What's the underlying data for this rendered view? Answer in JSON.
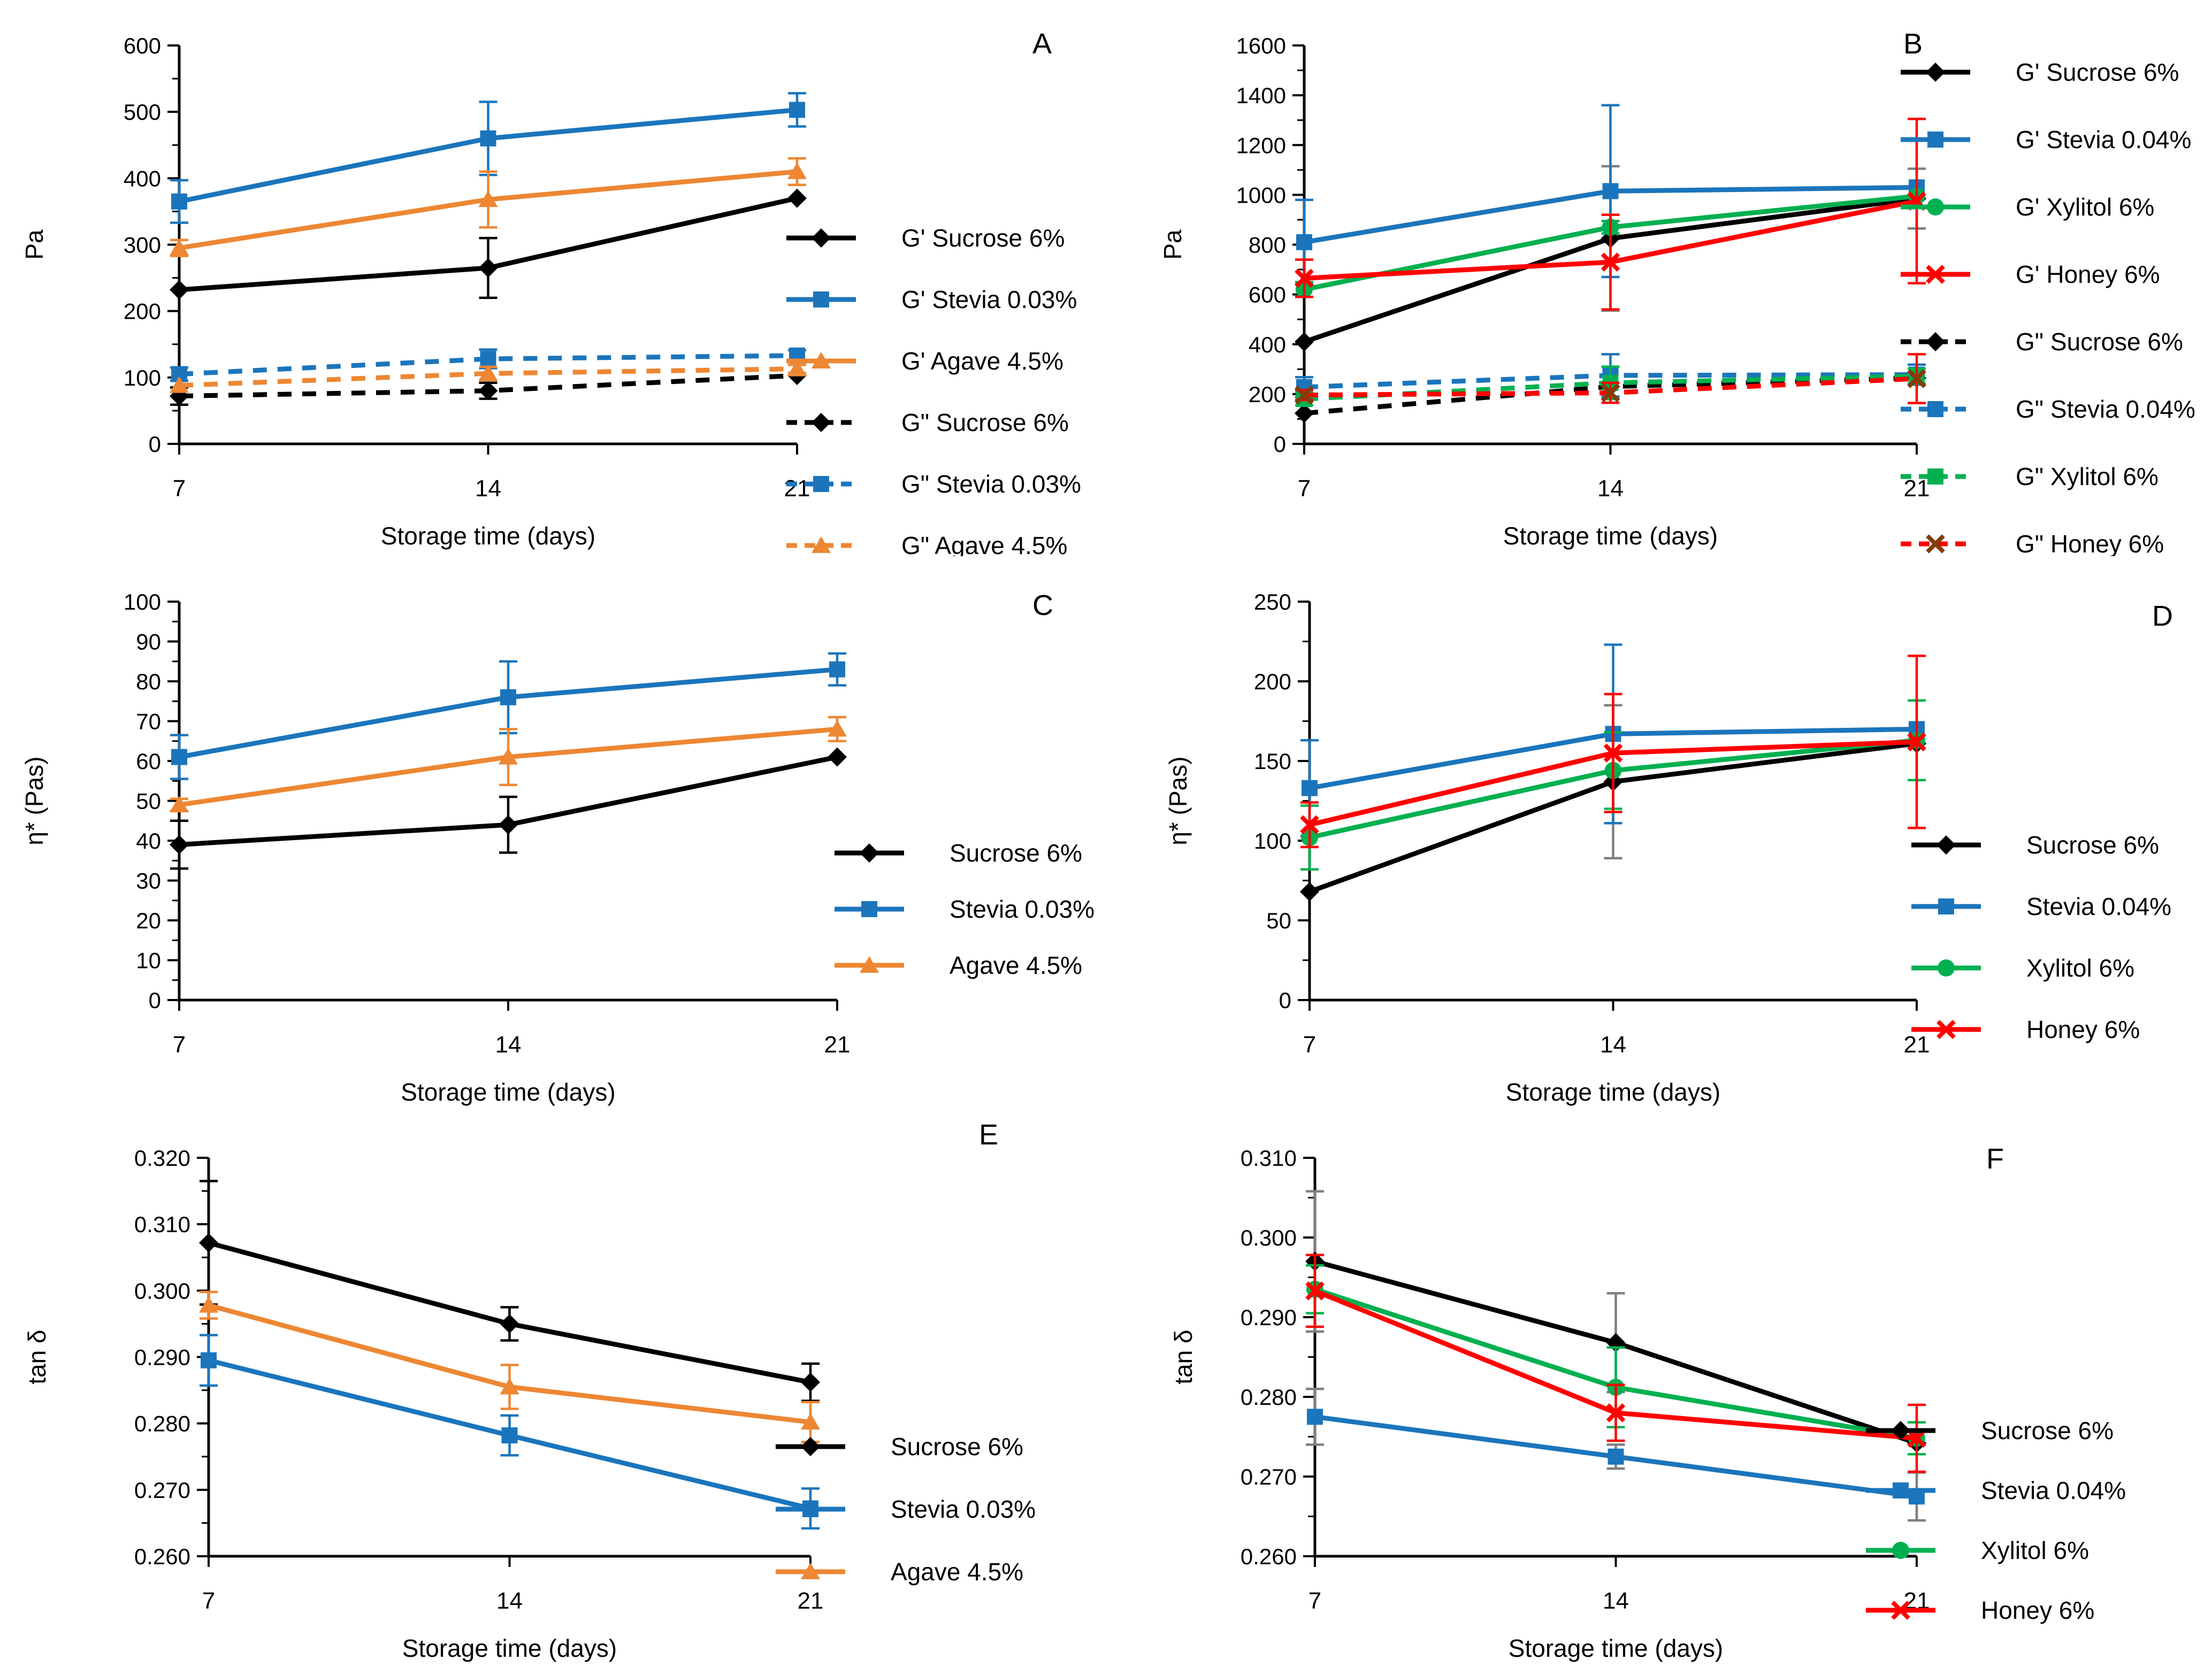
{
  "page": {
    "background": "#FFFFFF"
  },
  "chart_data": [
    {
      "panel": "A",
      "type": "line",
      "title": "",
      "xlabel": "Storage time (days)",
      "ylabel": "Pa",
      "x_categories": [
        "7",
        "14",
        "21"
      ],
      "ylim": [
        0,
        600
      ],
      "y_major": 100,
      "y_minor": 50,
      "y_decimals": 0,
      "grid": false,
      "legend_position": "right",
      "series": [
        {
          "name": "G' Sucrose 6%",
          "color": "#000000",
          "marker": "diamond",
          "dashed": false,
          "values": [
            232,
            265,
            370
          ],
          "err": [
            0,
            45,
            0
          ]
        },
        {
          "name": "G' Stevia 0.03%",
          "color": "#1B75BC",
          "marker": "square",
          "dashed": false,
          "values": [
            365,
            460,
            503
          ],
          "err": [
            32,
            55,
            25
          ]
        },
        {
          "name": "G' Agave 4.5%",
          "color": "#ED8733",
          "marker": "triangle",
          "dashed": false,
          "values": [
            295,
            368,
            410
          ],
          "err": [
            12,
            42,
            20
          ]
        },
        {
          "name": "G\" Sucrose 6%",
          "color": "#000000",
          "marker": "diamond",
          "dashed": true,
          "values": [
            72,
            80,
            103
          ],
          "err": [
            13,
            12,
            0
          ]
        },
        {
          "name": "G\" Stevia 0.03%",
          "color": "#1B75BC",
          "marker": "square",
          "dashed": true,
          "values": [
            105,
            128,
            133
          ],
          "err": [
            10,
            14,
            8
          ]
        },
        {
          "name": "G\" Agave 4.5%",
          "color": "#ED8733",
          "marker": "triangle",
          "dashed": true,
          "values": [
            88,
            106,
            113
          ],
          "err": [
            0,
            10,
            6
          ]
        }
      ],
      "layout": {
        "plot_left": 335,
        "plot_right": 1490,
        "ylabel_x": 80,
        "legend_text_x": 1685,
        "legend_y": 445,
        "legend_dy": 115,
        "letter_x": 1930,
        "letter_y": 100
      }
    },
    {
      "panel": "B",
      "type": "line",
      "title": "",
      "xlabel": "Storage time (days)",
      "ylabel": "Pa",
      "x_categories": [
        "7",
        "14",
        "21"
      ],
      "ylim": [
        0,
        1600
      ],
      "y_major": 200,
      "y_minor": 100,
      "y_decimals": 0,
      "grid": false,
      "legend_position": "right",
      "series": [
        {
          "name": "G' Sucrose 6%",
          "color": "#000000",
          "marker": "diamond",
          "dashed": false,
          "values": [
            410,
            825,
            985
          ],
          "err": [
            0,
            290,
            120
          ],
          "err_color": "#7F7F7F"
        },
        {
          "name": "G' Stevia 0.04%",
          "color": "#1B75BC",
          "marker": "square",
          "dashed": false,
          "values": [
            810,
            1015,
            1030
          ],
          "err": [
            170,
            345,
            0
          ]
        },
        {
          "name": "G' Xylitol 6%",
          "color": "#00B050",
          "marker": "circle",
          "dashed": false,
          "values": [
            620,
            870,
            995
          ],
          "err": [
            30,
            25,
            0
          ]
        },
        {
          "name": "G' Honey 6%",
          "color": "#FF0000",
          "marker": "x",
          "dashed": false,
          "values": [
            665,
            730,
            975
          ],
          "err": [
            75,
            190,
            330
          ]
        },
        {
          "name": "G\" Sucrose 6%",
          "color": "#000000",
          "marker": "diamond",
          "dashed": true,
          "values": [
            123,
            230,
            265
          ],
          "err": [
            0,
            0,
            0
          ]
        },
        {
          "name": "G\" Stevia 0.04%",
          "color": "#1B75BC",
          "marker": "square",
          "dashed": true,
          "values": [
            228,
            275,
            278
          ],
          "err": [
            40,
            85,
            40
          ]
        },
        {
          "name": "G\" Xylitol 6%",
          "color": "#00B050",
          "marker": "square",
          "dashed": true,
          "values": [
            180,
            245,
            272
          ],
          "err": [
            25,
            65,
            30
          ]
        },
        {
          "name": "G\" Honey 6%",
          "color": "#FF0000",
          "marker": "x",
          "dashed": true,
          "values": [
            196,
            205,
            262
          ],
          "err": [
            20,
            40,
            98
          ],
          "marker_color": "#843C0C"
        }
      ],
      "layout": {
        "plot_left": 370,
        "plot_right": 1515,
        "ylabel_x": 140,
        "legend_text_x": 1700,
        "legend_y": 135,
        "legend_dy": 126,
        "letter_x": 1490,
        "letter_y": 100
      }
    },
    {
      "panel": "C",
      "type": "line",
      "title": "",
      "xlabel": "Storage time (days)",
      "ylabel": "η* (Pas)",
      "x_categories": [
        "7",
        "14",
        "21"
      ],
      "ylim": [
        0,
        100
      ],
      "y_major": 10,
      "y_minor": 5,
      "y_decimals": 0,
      "grid": false,
      "legend_position": "right",
      "series": [
        {
          "name": "Sucrose 6%",
          "color": "#000000",
          "marker": "diamond",
          "dashed": false,
          "values": [
            39,
            44,
            61
          ],
          "err": [
            6,
            7,
            0
          ]
        },
        {
          "name": "Stevia 0.03%",
          "color": "#1B75BC",
          "marker": "square",
          "dashed": false,
          "values": [
            61,
            76,
            83
          ],
          "err": [
            5.5,
            9,
            4
          ]
        },
        {
          "name": "Agave 4.5%",
          "color": "#ED8733",
          "marker": "triangle",
          "dashed": false,
          "values": [
            49,
            61,
            68
          ],
          "err": [
            1.5,
            7,
            3
          ]
        }
      ],
      "layout": {
        "plot_left": 335,
        "plot_right": 1565,
        "ylabel_x": 80,
        "legend_text_x": 1775,
        "legend_y": 555,
        "legend_dy": 105,
        "letter_x": 1930,
        "letter_y": 110
      }
    },
    {
      "panel": "D",
      "type": "line",
      "title": "",
      "xlabel": "Storage time (days)",
      "ylabel": "η* (Pas)",
      "x_categories": [
        "7",
        "14",
        "21"
      ],
      "ylim": [
        0,
        250
      ],
      "y_major": 50,
      "y_minor": 25,
      "y_decimals": 0,
      "grid": false,
      "legend_position": "right",
      "series": [
        {
          "name": "Sucrose 6%",
          "color": "#000000",
          "marker": "diamond",
          "dashed": false,
          "values": [
            68,
            137,
            161
          ],
          "err": [
            0,
            48,
            0
          ],
          "err_color": "#7F7F7F"
        },
        {
          "name": "Stevia 0.04%",
          "color": "#1B75BC",
          "marker": "square",
          "dashed": false,
          "values": [
            133,
            167,
            170
          ],
          "err": [
            30,
            56,
            0
          ]
        },
        {
          "name": "Xylitol 6%",
          "color": "#00B050",
          "marker": "circle",
          "dashed": false,
          "values": [
            102,
            144,
            163
          ],
          "err": [
            20,
            24,
            25
          ]
        },
        {
          "name": "Honey 6%",
          "color": "#FF0000",
          "marker": "x",
          "dashed": false,
          "values": [
            110,
            155,
            162
          ],
          "err": [
            14,
            37,
            54
          ]
        }
      ],
      "layout": {
        "plot_left": 380,
        "plot_right": 1515,
        "ylabel_x": 150,
        "legend_text_x": 1720,
        "legend_y": 540,
        "legend_dy": 115,
        "letter_x": 1955,
        "letter_y": 130
      }
    },
    {
      "panel": "E",
      "type": "line",
      "title": "",
      "xlabel": "Storage time (days)",
      "ylabel": "tan δ",
      "x_categories": [
        "7",
        "14",
        "21"
      ],
      "ylim": [
        0.26,
        0.32
      ],
      "y_major": 0.01,
      "y_minor": 0.005,
      "y_decimals": 3,
      "grid": false,
      "legend_position": "right",
      "series": [
        {
          "name": "Sucrose 6%",
          "color": "#000000",
          "marker": "diamond",
          "dashed": false,
          "values": [
            0.3072,
            0.295,
            0.2862
          ],
          "err": [
            0.0093,
            0.0025,
            0.0028
          ]
        },
        {
          "name": "Stevia 0.03%",
          "color": "#1B75BC",
          "marker": "square",
          "dashed": false,
          "values": [
            0.2895,
            0.2782,
            0.2672
          ],
          "err": [
            0.0038,
            0.003,
            0.003
          ]
        },
        {
          "name": "Agave 4.5%",
          "color": "#ED8733",
          "marker": "triangle",
          "dashed": false,
          "values": [
            0.2978,
            0.2855,
            0.2802
          ],
          "err": [
            0.002,
            0.0033,
            0.003
          ]
        }
      ],
      "layout": {
        "plot_left": 390,
        "plot_right": 1515,
        "ylabel_x": 85,
        "legend_text_x": 1665,
        "legend_y": 625,
        "legend_dy": 117,
        "letter_x": 1830,
        "letter_y": 60
      }
    },
    {
      "panel": "F",
      "type": "line",
      "title": "",
      "xlabel": "Storage time (days)",
      "ylabel": "tan δ",
      "x_categories": [
        "7",
        "14",
        "21"
      ],
      "ylim": [
        0.26,
        0.31
      ],
      "y_major": 0.01,
      "y_minor": 0.005,
      "y_decimals": 3,
      "grid": false,
      "legend_position": "right",
      "series": [
        {
          "name": "Sucrose 6%",
          "color": "#000000",
          "marker": "diamond",
          "dashed": false,
          "values": [
            0.297,
            0.2868,
            0.2742
          ],
          "err": [
            0.0088,
            0.0062,
            0
          ],
          "err_color": "#7F7F7F"
        },
        {
          "name": "Stevia 0.04%",
          "color": "#1B75BC",
          "marker": "square",
          "dashed": false,
          "values": [
            0.2775,
            0.2725,
            0.2675
          ],
          "err": [
            0.0035,
            0.0015,
            0.003
          ],
          "err_color": "#7F7F7F"
        },
        {
          "name": "Xylitol 6%",
          "color": "#00B050",
          "marker": "circle",
          "dashed": false,
          "values": [
            0.2935,
            0.2812,
            0.2748
          ],
          "err": [
            0.003,
            0.005,
            0.002
          ]
        },
        {
          "name": "Honey 6%",
          "color": "#FF0000",
          "marker": "x",
          "dashed": false,
          "values": [
            0.2933,
            0.278,
            0.2748
          ],
          "err": [
            0.0045,
            0.0035,
            0.0042
          ]
        }
      ],
      "layout": {
        "plot_left": 390,
        "plot_right": 1515,
        "ylabel_x": 160,
        "legend_text_x": 1635,
        "legend_y": 595,
        "legend_dy": 112,
        "letter_x": 1645,
        "letter_y": 105
      }
    }
  ]
}
